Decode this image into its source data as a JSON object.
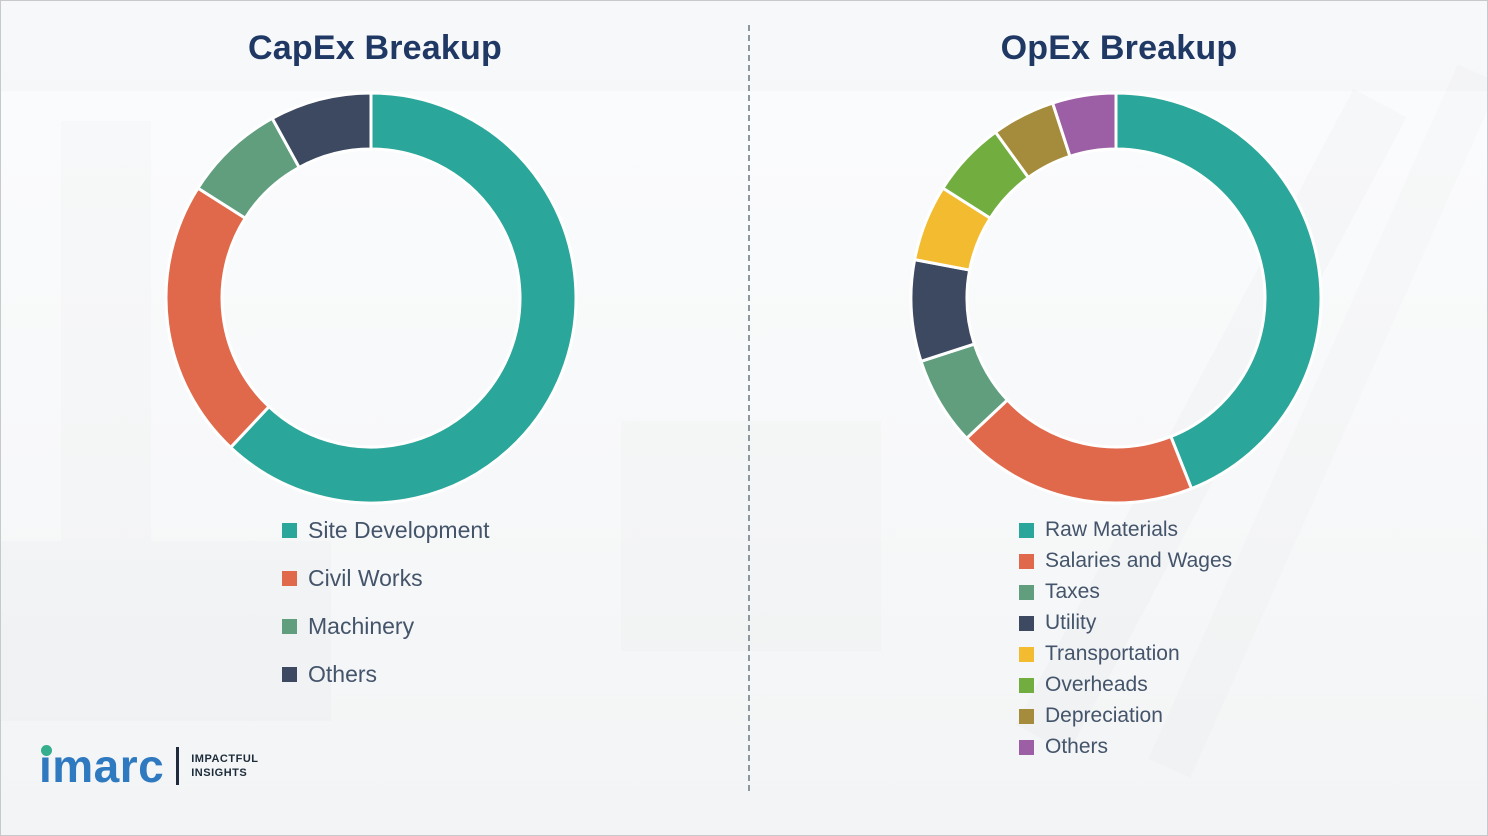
{
  "chart_data": [
    {
      "type": "donut",
      "title": "CapEx Breakup",
      "legend_position": "bottom-left",
      "values_are": "percent, estimated from arc angles (no numeric labels shown)",
      "segments": [
        {
          "label": "Site Development",
          "value": 62,
          "color": "#2BA69A"
        },
        {
          "label": "Civil Works",
          "value": 22,
          "color": "#E0684B"
        },
        {
          "label": "Machinery",
          "value": 8,
          "color": "#609E7E"
        },
        {
          "label": "Others",
          "value": 8,
          "color": "#3D4961"
        }
      ]
    },
    {
      "type": "donut",
      "title": "OpEx Breakup",
      "legend_position": "bottom-left",
      "values_are": "percent, estimated from arc angles (no numeric labels shown)",
      "segments": [
        {
          "label": "Raw Materials",
          "value": 44,
          "color": "#2BA69A"
        },
        {
          "label": "Salaries and Wages",
          "value": 19,
          "color": "#E0684B"
        },
        {
          "label": "Taxes",
          "value": 7,
          "color": "#609E7E"
        },
        {
          "label": "Utility",
          "value": 8,
          "color": "#3D4961"
        },
        {
          "label": "Transportation",
          "value": 6,
          "color": "#F3BB2F"
        },
        {
          "label": "Overheads",
          "value": 6,
          "color": "#72AE3F"
        },
        {
          "label": "Depreciation",
          "value": 5,
          "color": "#A58C3C"
        },
        {
          "label": "Others",
          "value": 5,
          "color": "#9C5FA5"
        }
      ]
    }
  ],
  "logo": {
    "text": "imarc",
    "tagline_line1": "IMPACTFUL",
    "tagline_line2": "INSIGHTS"
  }
}
